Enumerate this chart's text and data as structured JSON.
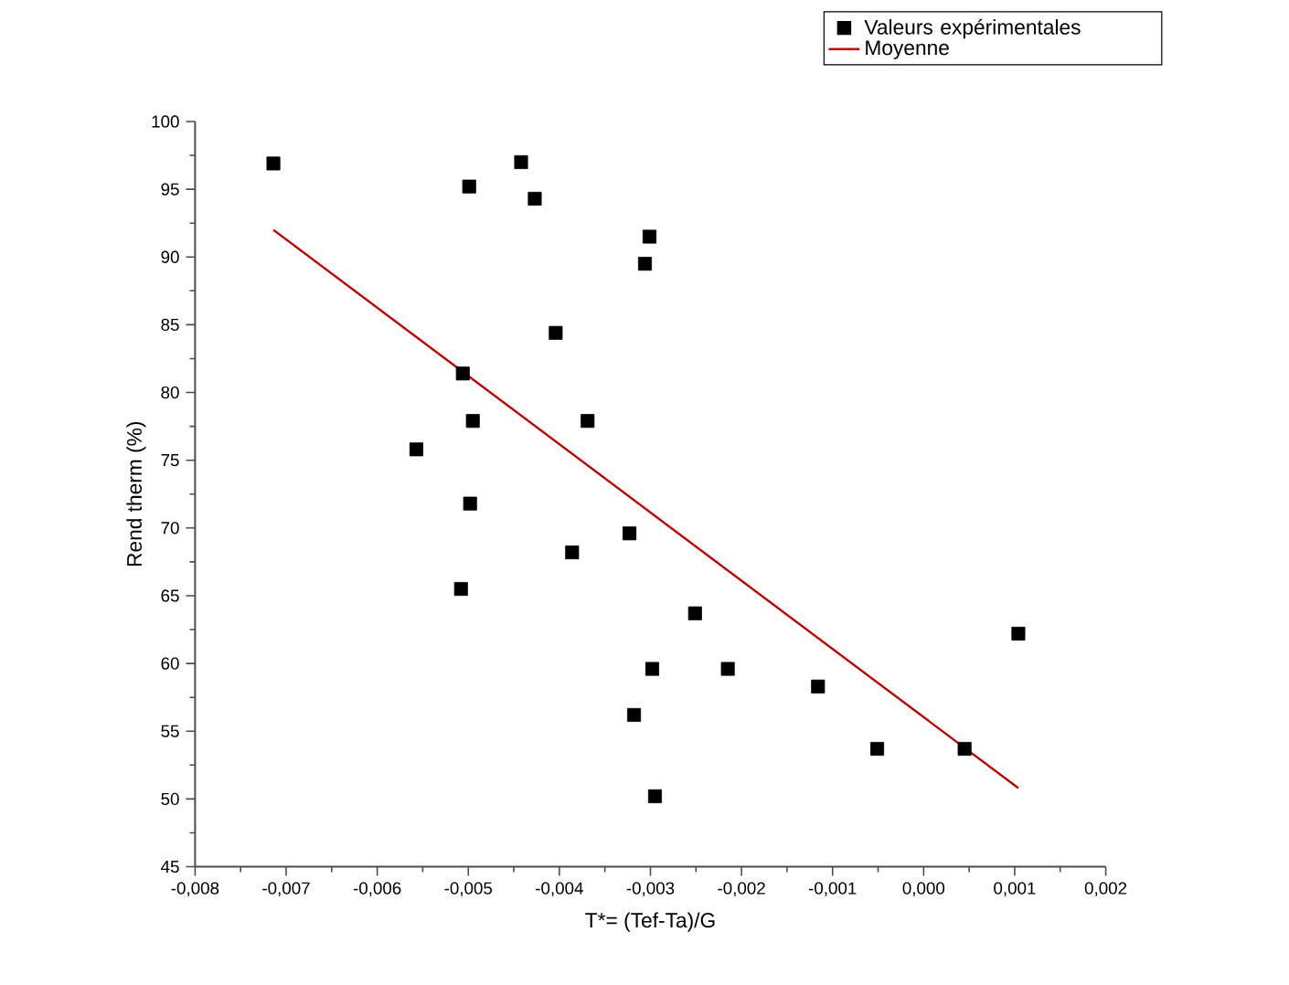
{
  "chart_data": {
    "type": "scatter",
    "xlabel": "T*= (Tef-Ta)/G",
    "ylabel": "Rend therm (%)",
    "xlim": [
      -0.008,
      0.002
    ],
    "ylim": [
      45,
      100
    ],
    "xticks": [
      {
        "value": -0.008,
        "label": "-0,008"
      },
      {
        "value": -0.007,
        "label": "-0,007"
      },
      {
        "value": -0.006,
        "label": "-0,006"
      },
      {
        "value": -0.005,
        "label": "-0,005"
      },
      {
        "value": -0.004,
        "label": "-0,004"
      },
      {
        "value": -0.003,
        "label": "-0,003"
      },
      {
        "value": -0.002,
        "label": "-0,002"
      },
      {
        "value": -0.001,
        "label": "-0,001"
      },
      {
        "value": 0,
        "label": "0,000"
      },
      {
        "value": 0.001,
        "label": "0,001"
      },
      {
        "value": 0.002,
        "label": "0,002"
      }
    ],
    "yticks": [
      45,
      50,
      55,
      60,
      65,
      70,
      75,
      80,
      85,
      90,
      95,
      100
    ],
    "legend": "top right",
    "series": [
      {
        "name": "Valeurs expérimentales",
        "color": "#000000",
        "marker": "square",
        "x": [
          -0.00714,
          -0.00499,
          -0.00442,
          -0.00427,
          -0.00301,
          -0.00306,
          -0.00404,
          -0.00506,
          -0.00495,
          -0.00369,
          -0.00557,
          -0.00498,
          -0.00323,
          -0.00386,
          -0.00508,
          -0.00251,
          -0.00298,
          -0.00318,
          -0.00295,
          -0.00215,
          -0.00116,
          -0.00051,
          0.00045,
          0.00104
        ],
        "values": [
          96.9,
          95.2,
          97.0,
          94.3,
          91.5,
          89.5,
          84.4,
          81.4,
          77.9,
          77.9,
          75.8,
          71.8,
          69.6,
          68.2,
          65.5,
          63.7,
          59.6,
          56.2,
          50.2,
          59.6,
          58.3,
          53.7,
          53.7,
          62.2
        ]
      },
      {
        "name": "Moyenne",
        "type": "line",
        "color": "#c00000",
        "x": [
          -0.00714,
          0.00104
        ],
        "values": [
          92.0,
          50.8
        ]
      }
    ]
  }
}
